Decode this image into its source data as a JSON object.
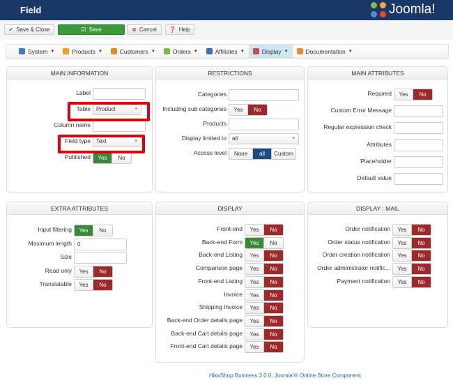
{
  "header": {
    "title": "Field",
    "logo_text": "Joomla!"
  },
  "toolbar": {
    "save_close": "Save & Close",
    "save": "Save",
    "cancel": "Cancel",
    "help": "Help"
  },
  "menu": [
    {
      "label": "System",
      "color": "#3a7fc1"
    },
    {
      "label": "Products",
      "color": "#f0a020"
    },
    {
      "label": "Customers",
      "color": "#e08a20"
    },
    {
      "label": "Orders",
      "color": "#8ab04a"
    },
    {
      "label": "Affiliates",
      "color": "#3a6fb0"
    },
    {
      "label": "Display",
      "color": "#c05050",
      "active": true
    },
    {
      "label": "Documentation",
      "color": "#e09030"
    }
  ],
  "panels": [
    {
      "id": "main-information",
      "title": "MAIN INFORMATION",
      "rows": [
        {
          "label": "Label",
          "type": "input",
          "value": ""
        },
        {
          "label": "Table",
          "type": "select",
          "value": "Product"
        },
        {
          "label": "Column name",
          "type": "input",
          "value": ""
        },
        {
          "label": "Field type",
          "type": "select",
          "value": "Text"
        },
        {
          "label": "Published",
          "type": "toggle",
          "options": [
            "Yes",
            "No"
          ],
          "selected": "Yes"
        }
      ]
    },
    {
      "id": "restrictions",
      "title": "RESTRICTIONS",
      "rows": [
        {
          "label": "Categories",
          "type": "input",
          "value": ""
        },
        {
          "label": "Including sub categories",
          "type": "toggle",
          "options": [
            "Yes",
            "No"
          ],
          "selected": "No"
        },
        {
          "label": "Products",
          "type": "input",
          "value": ""
        },
        {
          "label": "Display limited to",
          "type": "select",
          "value": "all"
        },
        {
          "label": "Access level",
          "type": "toggle",
          "options": [
            "None",
            "all",
            "Custom"
          ],
          "selected": "all"
        }
      ]
    },
    {
      "id": "main-attributes",
      "title": "MAIN ATTRIBUTES",
      "rows": [
        {
          "label": "Required",
          "type": "toggle",
          "options": [
            "Yes",
            "No"
          ],
          "selected": "No"
        },
        {
          "label": "Custom Error Message",
          "type": "input",
          "value": ""
        },
        {
          "label": "Regular expression check",
          "type": "input",
          "value": ""
        },
        {
          "label": "Attributes",
          "type": "input",
          "value": ""
        },
        {
          "label": "Placeholder",
          "type": "input",
          "value": ""
        },
        {
          "label": "Default value",
          "type": "input",
          "value": ""
        }
      ]
    },
    {
      "id": "extra-attributes",
      "title": "EXTRA ATTRIBUTES",
      "rows": [
        {
          "label": "Input filtering",
          "type": "toggle",
          "options": [
            "Yes",
            "No"
          ],
          "selected": "Yes"
        },
        {
          "label": "Maximum length",
          "type": "input",
          "value": "0"
        },
        {
          "label": "Size",
          "type": "input",
          "value": ""
        },
        {
          "label": "Read only",
          "type": "toggle",
          "options": [
            "Yes",
            "No"
          ],
          "selected": "No"
        },
        {
          "label": "Translatable",
          "type": "toggle",
          "options": [
            "Yes",
            "No"
          ],
          "selected": "No"
        }
      ]
    },
    {
      "id": "display",
      "title": "DISPLAY",
      "rows": [
        {
          "label": "Front-end",
          "type": "toggle",
          "options": [
            "Yes",
            "No"
          ],
          "selected": "No"
        },
        {
          "label": "Back-end Form",
          "type": "toggle",
          "options": [
            "Yes",
            "No"
          ],
          "selected": "Yes"
        },
        {
          "label": "Back-end Listing",
          "type": "toggle",
          "options": [
            "Yes",
            "No"
          ],
          "selected": "No"
        },
        {
          "label": "Comparison page",
          "type": "toggle",
          "options": [
            "Yes",
            "No"
          ],
          "selected": "No"
        },
        {
          "label": "Front-end Listing",
          "type": "toggle",
          "options": [
            "Yes",
            "No"
          ],
          "selected": "No"
        },
        {
          "label": "Invoice",
          "type": "toggle",
          "options": [
            "Yes",
            "No"
          ],
          "selected": "No"
        },
        {
          "label": "Shipping Invoice",
          "type": "toggle",
          "options": [
            "Yes",
            "No"
          ],
          "selected": "No"
        },
        {
          "label": "Back-end Order details page",
          "type": "toggle",
          "options": [
            "Yes",
            "No"
          ],
          "selected": "No"
        },
        {
          "label": "Back-end Cart details page",
          "type": "toggle",
          "options": [
            "Yes",
            "No"
          ],
          "selected": "No"
        },
        {
          "label": "Front-end Cart details page",
          "type": "toggle",
          "options": [
            "Yes",
            "No"
          ],
          "selected": "No"
        }
      ]
    },
    {
      "id": "display-mail",
      "title": "DISPLAY : MAIL",
      "rows": [
        {
          "label": "Order notification",
          "type": "toggle",
          "options": [
            "Yes",
            "No"
          ],
          "selected": "No"
        },
        {
          "label": "Order status notification",
          "type": "toggle",
          "options": [
            "Yes",
            "No"
          ],
          "selected": "No"
        },
        {
          "label": "Order creation notification",
          "type": "toggle",
          "options": [
            "Yes",
            "No"
          ],
          "selected": "No"
        },
        {
          "label": "Order administrator notific...",
          "type": "toggle",
          "options": [
            "Yes",
            "No"
          ],
          "selected": "No"
        },
        {
          "label": "Payment notification",
          "type": "toggle",
          "options": [
            "Yes",
            "No"
          ],
          "selected": "No"
        }
      ]
    }
  ],
  "footer": "HikaShop Business 3.0.0, Joomla!® Online Store Component"
}
